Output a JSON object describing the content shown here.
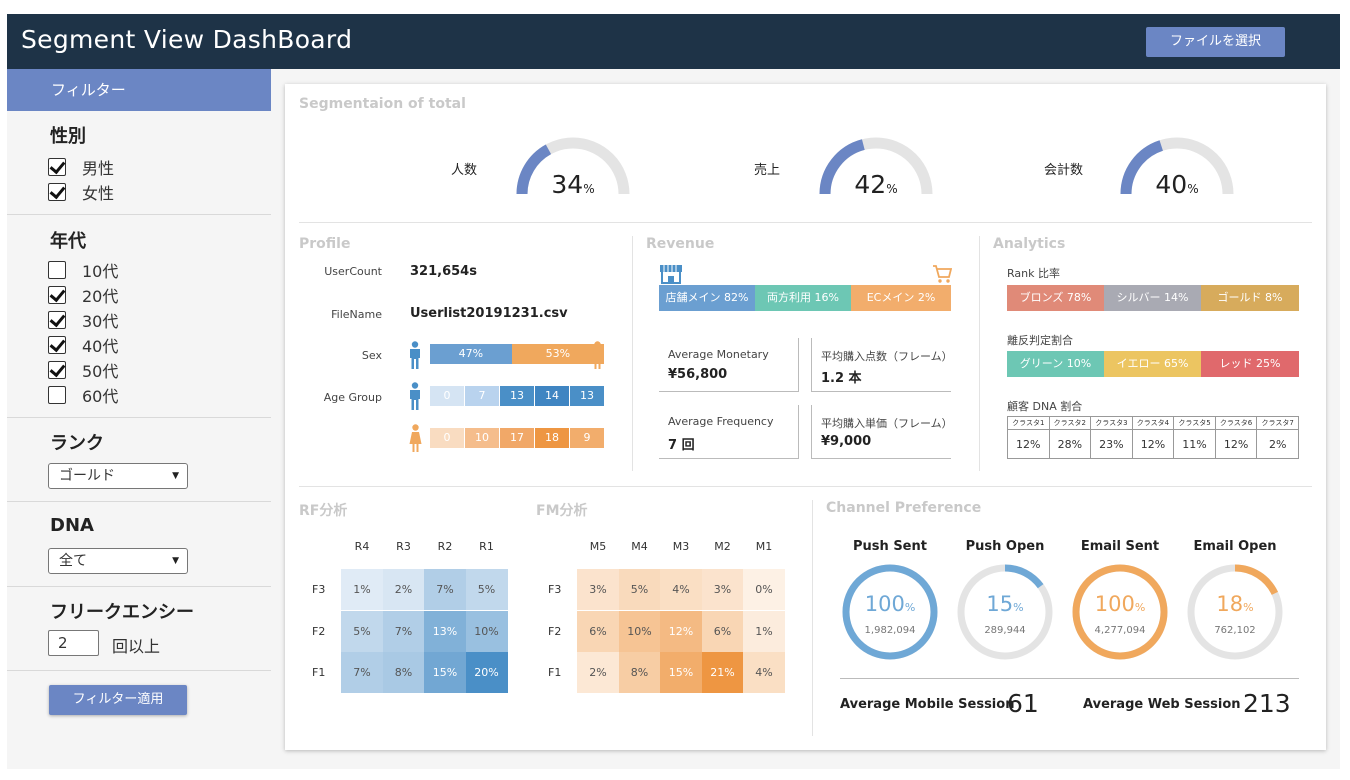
{
  "header": {
    "title": "Segment View DashBoard",
    "file_button": "ファイルを選択"
  },
  "sidebar": {
    "heading": "フィルター",
    "gender": {
      "title": "性別",
      "options": [
        {
          "label": "男性",
          "checked": true
        },
        {
          "label": "女性",
          "checked": true
        }
      ]
    },
    "age": {
      "title": "年代",
      "options": [
        {
          "label": "10代",
          "checked": false
        },
        {
          "label": "20代",
          "checked": true
        },
        {
          "label": "30代",
          "checked": true
        },
        {
          "label": "40代",
          "checked": true
        },
        {
          "label": "50代",
          "checked": true
        },
        {
          "label": "60代",
          "checked": false
        }
      ]
    },
    "rank": {
      "title": "ランク",
      "selected": "ゴールド"
    },
    "dna": {
      "title": "DNA",
      "selected": "全て"
    },
    "frequency": {
      "title": "フリークエンシー",
      "value": "2",
      "suffix": "回以上"
    },
    "apply_button": "フィルター適用"
  },
  "segmentation": {
    "title": "Segmentaion of total",
    "gauges": [
      {
        "label": "人数",
        "value": 34,
        "unit": "%"
      },
      {
        "label": "売上",
        "value": 42,
        "unit": "%"
      },
      {
        "label": "会計数",
        "value": 40,
        "unit": "%"
      }
    ]
  },
  "profile": {
    "title": "Profile",
    "user_count_label": "UserCount",
    "user_count": "321,654s",
    "file_name_label": "FileName",
    "file_name": "Userlist20191231.csv",
    "sex_label": "Sex",
    "sex": [
      {
        "label": "47%",
        "value": 47
      },
      {
        "label": "53%",
        "value": 53
      }
    ],
    "age_group_label": "Age Group",
    "age_male": [
      0,
      7,
      13,
      14,
      13
    ],
    "age_female": [
      0,
      10,
      17,
      18,
      9
    ]
  },
  "revenue": {
    "title": "Revenue",
    "channels": [
      {
        "label": "店舗メイン 82%",
        "color": "#6b9fd1"
      },
      {
        "label": "両方利用 16%",
        "color": "#6dc7b4"
      },
      {
        "label": "ECメイン 2%",
        "color": "#f2ad6c"
      }
    ],
    "boxes": [
      {
        "label": "Average Monetary",
        "value": "¥56,800"
      },
      {
        "label": "平均購入点数（フレーム）",
        "value": "1.2 本"
      },
      {
        "label": "Average Frequency",
        "value": "7 回"
      },
      {
        "label": "平均購入単価（フレーム）",
        "value": "¥9,000"
      }
    ]
  },
  "analytics": {
    "title": "Analytics",
    "rank_label": "Rank 比率",
    "rank": [
      {
        "label": "ブロンズ 78%",
        "color": "#e08a78"
      },
      {
        "label": "シルバー 14%",
        "color": "#a9aab3"
      },
      {
        "label": "ゴールド 8%",
        "color": "#d7ab5c"
      }
    ],
    "churn_label": "離反判定割合",
    "churn": [
      {
        "label": "グリーン 10%",
        "color": "#6dc7b4"
      },
      {
        "label": "イエロー 65%",
        "color": "#ecc561"
      },
      {
        "label": "レッド 25%",
        "color": "#e0696c"
      }
    ],
    "dna_label": "顧客 DNA 割合",
    "dna_headers": [
      "クラスタ1",
      "クラスタ2",
      "クラスタ3",
      "クラスタ4",
      "クラスタ5",
      "クラスタ6",
      "クラスタ7"
    ],
    "dna_values": [
      "12%",
      "28%",
      "23%",
      "12%",
      "11%",
      "12%",
      "2%"
    ]
  },
  "rf": {
    "title": "RF分析",
    "cols": [
      "R4",
      "R3",
      "R2",
      "R1"
    ],
    "rows": [
      "F3",
      "F2",
      "F1"
    ],
    "cells": [
      [
        "1%",
        "2%",
        "7%",
        "5%"
      ],
      [
        "5%",
        "7%",
        "13%",
        "10%"
      ],
      [
        "7%",
        "8%",
        "15%",
        "20%"
      ]
    ]
  },
  "fm": {
    "title": "FM分析",
    "cols": [
      "M5",
      "M4",
      "M3",
      "M2",
      "M1"
    ],
    "rows": [
      "F3",
      "F2",
      "F1"
    ],
    "cells": [
      [
        "3%",
        "5%",
        "4%",
        "3%",
        "0%"
      ],
      [
        "6%",
        "10%",
        "12%",
        "6%",
        "1%"
      ],
      [
        "2%",
        "8%",
        "15%",
        "21%",
        "4%"
      ]
    ]
  },
  "channel": {
    "title": "Channel Preference",
    "rings": [
      {
        "title": "Push Sent",
        "pct": 100,
        "unit": "%",
        "count": "1,982,094",
        "color": "#6fa8d6"
      },
      {
        "title": "Push Open",
        "pct": 15,
        "unit": "%",
        "count": "289,944",
        "color": "#6fa8d6"
      },
      {
        "title": "Email Sent",
        "pct": 100,
        "unit": "%",
        "count": "4,277,094",
        "color": "#f0a85d"
      },
      {
        "title": "Email Open",
        "pct": 18,
        "unit": "%",
        "count": "762,102",
        "color": "#f0a85d"
      }
    ],
    "mobile_label": "Average Mobile Session",
    "mobile_value": "61",
    "web_label": "Average Web Session",
    "web_value": "213"
  }
}
